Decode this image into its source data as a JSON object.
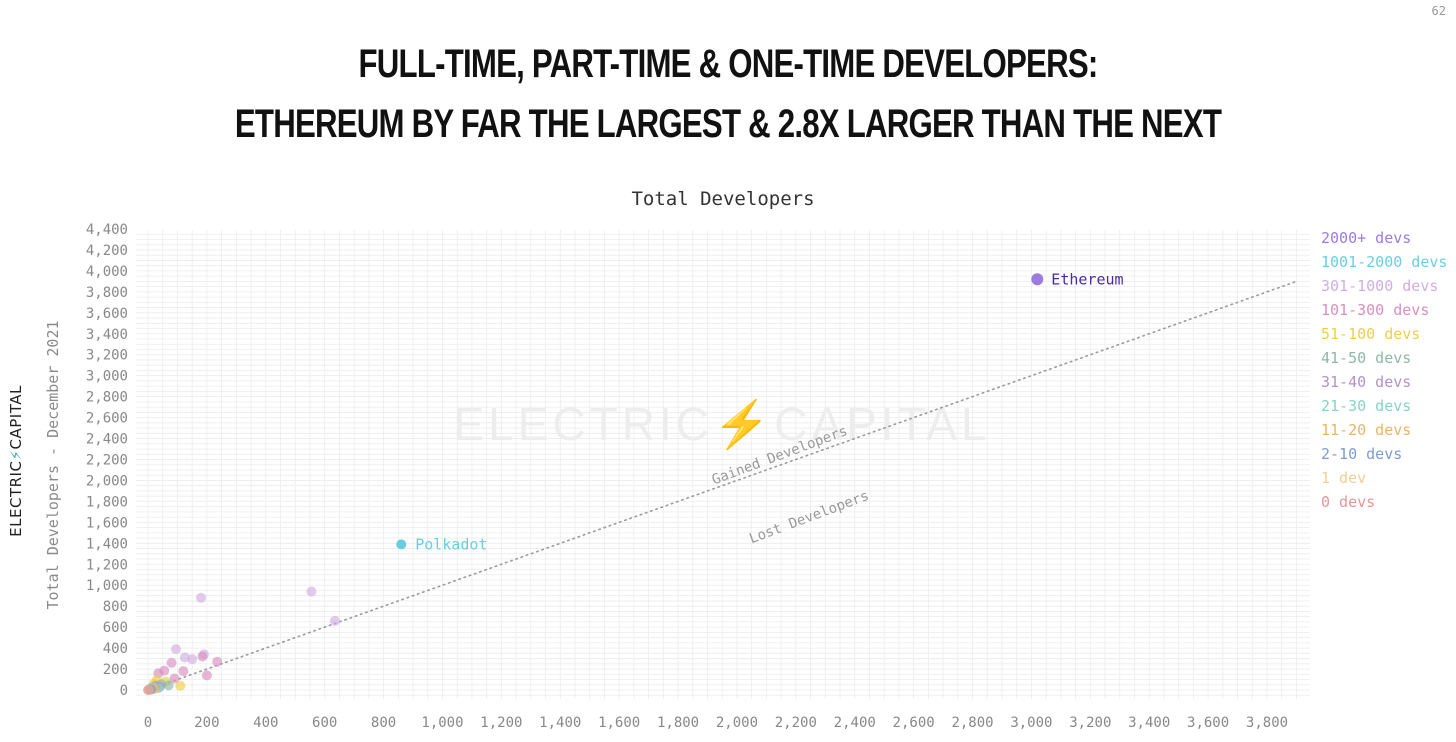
{
  "page_number": "62",
  "headline": {
    "line1": "FULL-TIME, PART-TIME & ONE-TIME DEVELOPERS:",
    "line2": "ETHEREUM BY FAR THE LARGEST & 2.8X LARGER THAN THE NEXT"
  },
  "brand": {
    "left": "ELECTRIC",
    "bolt": "⚡",
    "right": "CAPITAL"
  },
  "colors": {
    "ethereum": "#9b7be0",
    "polkadot": "#69cfe0",
    "grid": "#ececec",
    "tick_text": "#888888"
  },
  "chart_data": {
    "type": "scatter",
    "title": "Total Developers",
    "xlabel": "",
    "ylabel": "Total Developers - December 2021",
    "xlim": [
      -30,
      3900
    ],
    "ylim": [
      -40,
      4480
    ],
    "x_ticks": [
      0,
      200,
      400,
      600,
      800,
      1000,
      1200,
      1400,
      1600,
      1800,
      2000,
      2200,
      2400,
      2600,
      2800,
      3000,
      3200,
      3400,
      3600,
      3800
    ],
    "x_tick_labels": [
      "0",
      "200",
      "400",
      "600",
      "800",
      "1,000",
      "1,200",
      "1,400",
      "1,600",
      "1,800",
      "2,000",
      "2,200",
      "2,400",
      "2,600",
      "2,800",
      "3,000",
      "3,200",
      "3,400",
      "3,600",
      "3,800"
    ],
    "y_ticks": [
      0,
      200,
      400,
      600,
      800,
      1000,
      1200,
      1400,
      1600,
      1800,
      2000,
      2200,
      2400,
      2600,
      2800,
      3000,
      3200,
      3400,
      3600,
      3800,
      4000,
      4200,
      4400
    ],
    "y_tick_labels": [
      "0",
      "200",
      "400",
      "600",
      "800",
      "1,000",
      "1,200",
      "1,400",
      "1,600",
      "1,800",
      "2,000",
      "2,200",
      "2,400",
      "2,600",
      "2,800",
      "3,000",
      "3,200",
      "3,400",
      "3,600",
      "3,800",
      "4,000",
      "4,200",
      "4,400"
    ],
    "grid": true,
    "legend_position": "right",
    "legend": [
      {
        "label": "2000+ devs",
        "color": "#9b7be0"
      },
      {
        "label": "1001-2000 devs",
        "color": "#69cfe0"
      },
      {
        "label": "301-1000 devs",
        "color": "#d1aee0"
      },
      {
        "label": "101-300 devs",
        "color": "#d98fc0"
      },
      {
        "label": "51-100 devs",
        "color": "#eecf4a"
      },
      {
        "label": "41-50 devs",
        "color": "#8fb8a6"
      },
      {
        "label": "31-40 devs",
        "color": "#b392c9"
      },
      {
        "label": "21-30 devs",
        "color": "#86d4c4"
      },
      {
        "label": "11-20 devs",
        "color": "#ecb466"
      },
      {
        "label": "2-10 devs",
        "color": "#7e9bd0"
      },
      {
        "label": "1 dev",
        "color": "#f0ce96"
      },
      {
        "label": "0 devs",
        "color": "#e29797"
      }
    ],
    "reference_line": {
      "from": [
        0,
        0
      ],
      "to": [
        3900,
        3900
      ],
      "style": "dotted"
    },
    "annotations": [
      {
        "text": "Gained Developers",
        "x": 2150,
        "y": 2200
      },
      {
        "text": "Lost Developers",
        "x": 2250,
        "y": 1610
      }
    ],
    "labeled_points": [
      {
        "label": "Ethereum",
        "x": 3020,
        "y": 3920,
        "group": "2000+ devs"
      },
      {
        "label": "Polkadot",
        "x": 860,
        "y": 1390,
        "group": "1001-2000 devs"
      }
    ],
    "points": [
      {
        "x": 180,
        "y": 880,
        "group": "301-1000 devs"
      },
      {
        "x": 555,
        "y": 940,
        "group": "301-1000 devs"
      },
      {
        "x": 635,
        "y": 660,
        "group": "301-1000 devs"
      },
      {
        "x": 95,
        "y": 390,
        "group": "301-1000 devs"
      },
      {
        "x": 190,
        "y": 340,
        "group": "301-1000 devs"
      },
      {
        "x": 125,
        "y": 310,
        "group": "301-1000 devs"
      },
      {
        "x": 150,
        "y": 295,
        "group": "301-1000 devs"
      },
      {
        "x": 185,
        "y": 320,
        "group": "101-300 devs"
      },
      {
        "x": 235,
        "y": 270,
        "group": "101-300 devs"
      },
      {
        "x": 80,
        "y": 260,
        "group": "101-300 devs"
      },
      {
        "x": 120,
        "y": 180,
        "group": "101-300 devs"
      },
      {
        "x": 55,
        "y": 185,
        "group": "101-300 devs"
      },
      {
        "x": 35,
        "y": 160,
        "group": "101-300 devs"
      },
      {
        "x": 200,
        "y": 140,
        "group": "101-300 devs"
      },
      {
        "x": 90,
        "y": 110,
        "group": "101-300 devs"
      },
      {
        "x": 30,
        "y": 95,
        "group": "51-100 devs"
      },
      {
        "x": 60,
        "y": 80,
        "group": "51-100 devs"
      },
      {
        "x": 20,
        "y": 60,
        "group": "51-100 devs"
      },
      {
        "x": 110,
        "y": 40,
        "group": "51-100 devs"
      },
      {
        "x": 45,
        "y": 55,
        "group": "41-50 devs"
      },
      {
        "x": 70,
        "y": 45,
        "group": "41-50 devs"
      },
      {
        "x": 25,
        "y": 40,
        "group": "31-40 devs"
      },
      {
        "x": 40,
        "y": 30,
        "group": "31-40 devs"
      },
      {
        "x": 15,
        "y": 30,
        "group": "21-30 devs"
      },
      {
        "x": 35,
        "y": 18,
        "group": "21-30 devs"
      },
      {
        "x": 12,
        "y": 15,
        "group": "11-20 devs"
      },
      {
        "x": 22,
        "y": 10,
        "group": "11-20 devs"
      },
      {
        "x": 5,
        "y": 6,
        "group": "2-10 devs"
      },
      {
        "x": 10,
        "y": 4,
        "group": "2-10 devs"
      },
      {
        "x": 2,
        "y": 1,
        "group": "1 dev"
      },
      {
        "x": 0,
        "y": 0,
        "group": "0 devs"
      }
    ]
  }
}
